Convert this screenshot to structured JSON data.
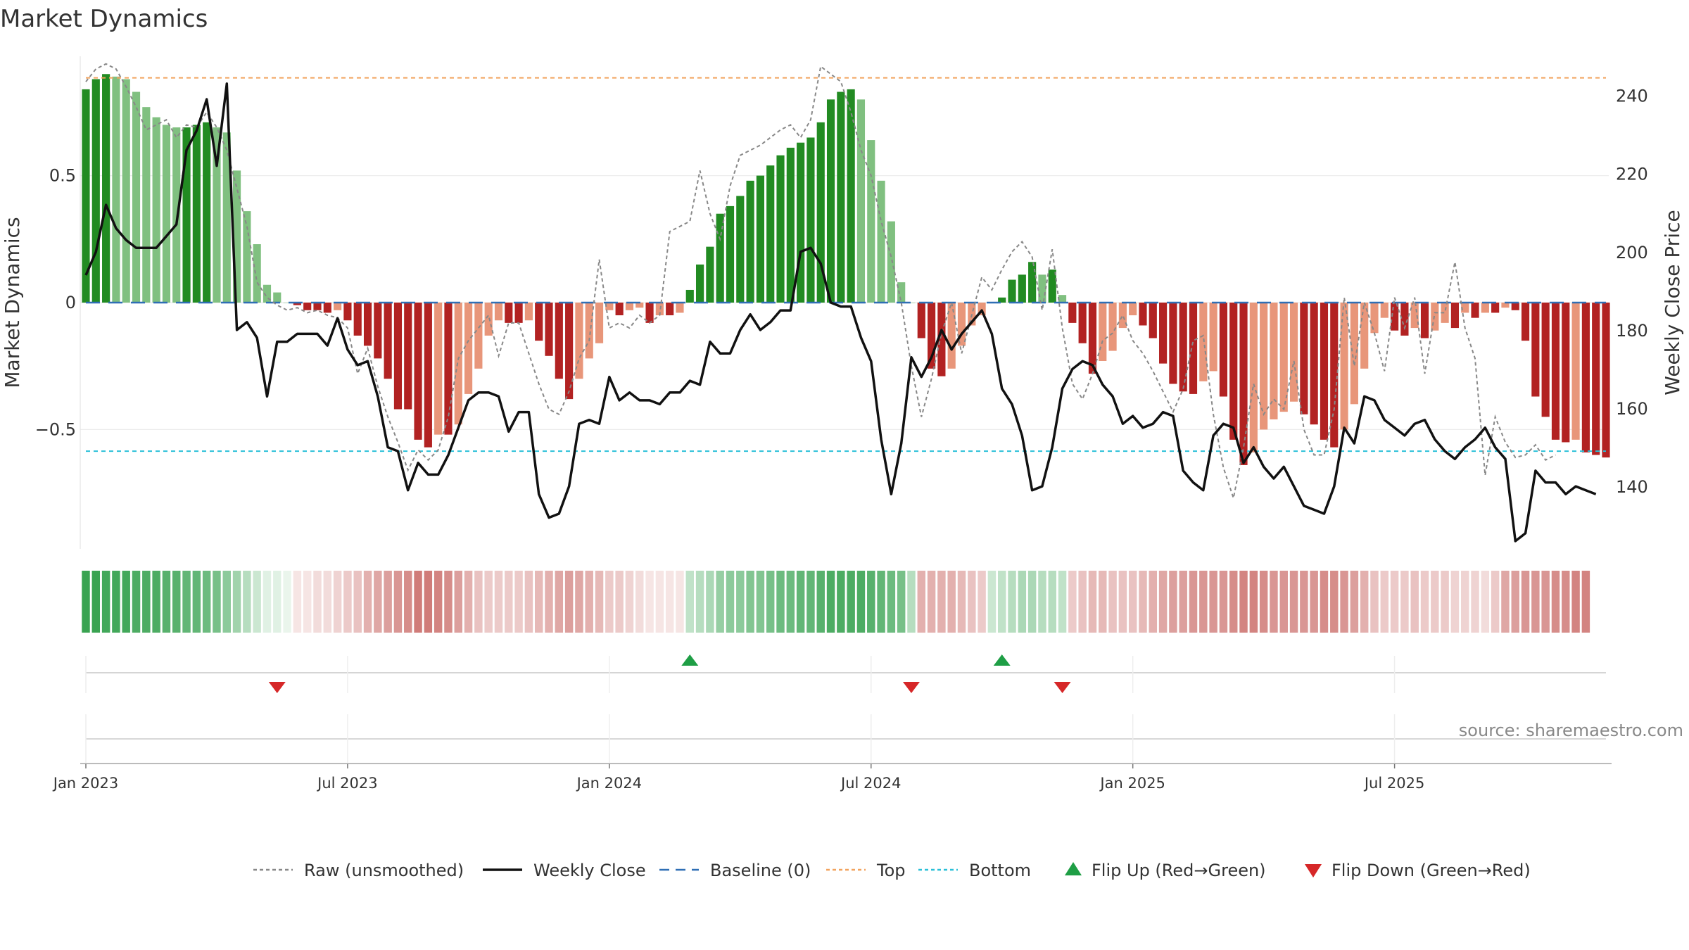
{
  "chart_data": {
    "type": "bar",
    "title": "Market Dynamics",
    "ylabel": "Market Dynamics",
    "y2label": "Weekly Close Price",
    "ylim": [
      -0.97,
      0.97
    ],
    "y2lim": [
      124,
      250
    ],
    "yticks": [
      {
        "value": 0.5,
        "label": "0.5"
      },
      {
        "value": 0,
        "label": "0"
      },
      {
        "value": -0.5,
        "label": "−0.5"
      }
    ],
    "y2ticks": [
      {
        "value": 240,
        "label": "240"
      },
      {
        "value": 220,
        "label": "220"
      },
      {
        "value": 200,
        "label": "200"
      },
      {
        "value": 180,
        "label": "180"
      },
      {
        "value": 160,
        "label": "160"
      },
      {
        "value": 140,
        "label": "140"
      }
    ],
    "xticks": [
      {
        "week": 1,
        "label": "Jan 2023"
      },
      {
        "week": 27,
        "label": "Jul 2023"
      },
      {
        "week": 53,
        "label": "Jan 2024"
      },
      {
        "week": 79,
        "label": "Jul 2024"
      },
      {
        "week": 105,
        "label": "Jan 2025"
      },
      {
        "week": 131,
        "label": "Jul 2025"
      }
    ],
    "reference_lines": {
      "top": 0.885,
      "bottom": -0.585,
      "baseline": 0
    },
    "market_dynamics": [
      0.84,
      0.88,
      0.9,
      0.89,
      0.88,
      0.83,
      0.77,
      0.73,
      0.7,
      0.69,
      0.69,
      0.7,
      0.71,
      0.69,
      0.67,
      0.52,
      0.36,
      0.23,
      0.07,
      0.04,
      0,
      -0.01,
      -0.03,
      -0.03,
      -0.04,
      -0.03,
      -0.07,
      -0.13,
      -0.17,
      -0.22,
      -0.3,
      -0.42,
      -0.42,
      -0.54,
      -0.57,
      -0.52,
      -0.52,
      -0.48,
      -0.36,
      -0.26,
      -0.13,
      -0.07,
      -0.08,
      -0.08,
      -0.07,
      -0.15,
      -0.21,
      -0.3,
      -0.38,
      -0.3,
      -0.22,
      -0.16,
      -0.03,
      -0.05,
      -0.03,
      -0.02,
      -0.08,
      -0.05,
      -0.05,
      -0.04,
      0.05,
      0.15,
      0.22,
      0.35,
      0.38,
      0.42,
      0.48,
      0.5,
      0.54,
      0.58,
      0.61,
      0.63,
      0.65,
      0.71,
      0.8,
      0.83,
      0.84,
      0.8,
      0.64,
      0.48,
      0.32,
      0.08,
      0,
      -0.14,
      -0.26,
      -0.29,
      -0.26,
      -0.17,
      -0.09,
      -0.05,
      0,
      0.02,
      0.09,
      0.11,
      0.16,
      0.11,
      0.13,
      0.03,
      -0.08,
      -0.16,
      -0.28,
      -0.23,
      -0.19,
      -0.1,
      -0.05,
      -0.09,
      -0.14,
      -0.24,
      -0.32,
      -0.35,
      -0.36,
      -0.31,
      -0.27,
      -0.37,
      -0.54,
      -0.64,
      -0.59,
      -0.5,
      -0.46,
      -0.43,
      -0.39,
      -0.44,
      -0.48,
      -0.54,
      -0.57,
      -0.5,
      -0.4,
      -0.26,
      -0.12,
      -0.06,
      -0.11,
      -0.13,
      -0.1,
      -0.14,
      -0.11,
      -0.08,
      -0.1,
      -0.04,
      -0.06,
      -0.04,
      -0.04,
      -0.02,
      -0.03,
      -0.15,
      -0.37,
      -0.45,
      -0.54,
      -0.55,
      -0.54,
      -0.59,
      -0.6,
      -0.61
    ],
    "raw_unsmoothed": [
      0.87,
      0.92,
      0.94,
      0.92,
      0.85,
      0.77,
      0.68,
      0.7,
      0.72,
      0.65,
      0.7,
      0.69,
      0.75,
      0.69,
      0.6,
      0.45,
      0.3,
      0.08,
      0.02,
      -0.01,
      -0.03,
      -0.02,
      -0.04,
      -0.03,
      -0.05,
      -0.06,
      -0.1,
      -0.28,
      -0.18,
      -0.33,
      -0.45,
      -0.55,
      -0.66,
      -0.58,
      -0.62,
      -0.58,
      -0.45,
      -0.22,
      -0.15,
      -0.1,
      -0.05,
      -0.21,
      -0.08,
      -0.08,
      -0.2,
      -0.32,
      -0.42,
      -0.44,
      -0.35,
      -0.22,
      -0.15,
      0.17,
      -0.1,
      -0.08,
      -0.1,
      -0.05,
      -0.08,
      -0.05,
      0.28,
      0.3,
      0.32,
      0.52,
      0.35,
      0.25,
      0.46,
      0.58,
      0.6,
      0.62,
      0.65,
      0.68,
      0.7,
      0.65,
      0.72,
      0.93,
      0.9,
      0.87,
      0.75,
      0.6,
      0.5,
      0.32,
      0.18,
      0,
      -0.25,
      -0.45,
      -0.3,
      -0.12,
      0,
      -0.2,
      -0.05,
      0.1,
      0.05,
      0.13,
      0.2,
      0.24,
      0.18,
      -0.03,
      0.21,
      -0.1,
      -0.32,
      -0.38,
      -0.28,
      -0.15,
      -0.12,
      -0.05,
      -0.15,
      -0.2,
      -0.27,
      -0.35,
      -0.43,
      -0.34,
      -0.15,
      -0.13,
      -0.44,
      -0.65,
      -0.77,
      -0.57,
      -0.32,
      -0.44,
      -0.38,
      -0.42,
      -0.23,
      -0.5,
      -0.6,
      -0.6,
      -0.42,
      0.02,
      -0.25,
      0,
      -0.12,
      -0.27,
      0.02,
      -0.1,
      0.02,
      -0.28,
      -0.04,
      -0.04,
      0.16,
      -0.1,
      -0.22,
      -0.68,
      -0.45,
      -0.55,
      -0.61,
      -0.6,
      -0.56,
      -0.62,
      -0.6
    ],
    "weekly_close": [
      194,
      200,
      212,
      206,
      203,
      201,
      201,
      201,
      204,
      207,
      226,
      231,
      239,
      222,
      243,
      180,
      182,
      178,
      163,
      177,
      177,
      179,
      179,
      179,
      176,
      183,
      175,
      171,
      172,
      163,
      150,
      149,
      139,
      146,
      143,
      143,
      148,
      155,
      162,
      164,
      164,
      163,
      154,
      159,
      159,
      138,
      132,
      133,
      140,
      156,
      157,
      156,
      168,
      162,
      164,
      162,
      162,
      161,
      164,
      164,
      167,
      166,
      177,
      174,
      174,
      180,
      184,
      180,
      182,
      185,
      185,
      200,
      201,
      197,
      187,
      186,
      186,
      178,
      172,
      152,
      138,
      151,
      173,
      168,
      173,
      180,
      175,
      179,
      182,
      185,
      179,
      165,
      161,
      153,
      139,
      140,
      150,
      165,
      170,
      172,
      171,
      166,
      163,
      156,
      158,
      155,
      156,
      159,
      158,
      144,
      141,
      139,
      153,
      156,
      155,
      146,
      150,
      145,
      142,
      145,
      140,
      135,
      134,
      133,
      140,
      155,
      151,
      163,
      162,
      157,
      155,
      153,
      156,
      157,
      152,
      149,
      147,
      150,
      152,
      155,
      150,
      147,
      126,
      128,
      144,
      141,
      141,
      138,
      140,
      139,
      138
    ],
    "signal_strength": [
      0.95,
      0.95,
      0.9,
      0.9,
      0.9,
      0.85,
      0.85,
      0.85,
      0.8,
      0.8,
      0.75,
      0.75,
      0.7,
      0.65,
      0.55,
      0.45,
      0.35,
      0.25,
      0.15,
      0.15,
      0.1,
      0.15,
      0.15,
      0.2,
      0.2,
      0.25,
      0.3,
      0.35,
      0.45,
      0.5,
      0.55,
      0.6,
      0.65,
      0.75,
      0.75,
      0.7,
      0.65,
      0.55,
      0.45,
      0.35,
      0.3,
      0.3,
      0.3,
      0.3,
      0.35,
      0.4,
      0.45,
      0.5,
      0.55,
      0.5,
      0.45,
      0.4,
      0.3,
      0.3,
      0.25,
      0.2,
      0.15,
      0.15,
      0.15,
      0.15,
      0.3,
      0.35,
      0.4,
      0.5,
      0.55,
      0.55,
      0.6,
      0.6,
      0.65,
      0.7,
      0.7,
      0.75,
      0.75,
      0.8,
      0.85,
      0.85,
      0.85,
      0.85,
      0.8,
      0.75,
      0.7,
      0.65,
      0.35,
      0.45,
      0.45,
      0.45,
      0.45,
      0.4,
      0.35,
      0.3,
      0.25,
      0.3,
      0.35,
      0.4,
      0.4,
      0.35,
      0.35,
      0.3,
      0.3,
      0.35,
      0.4,
      0.4,
      0.35,
      0.35,
      0.35,
      0.4,
      0.45,
      0.5,
      0.55,
      0.55,
      0.6,
      0.6,
      0.6,
      0.6,
      0.65,
      0.7,
      0.7,
      0.65,
      0.6,
      0.6,
      0.6,
      0.6,
      0.6,
      0.65,
      0.65,
      0.6,
      0.55,
      0.45,
      0.35,
      0.3,
      0.3,
      0.3,
      0.35,
      0.3,
      0.3,
      0.3,
      0.25,
      0.25,
      0.25,
      0.2,
      0.3,
      0.5,
      0.55,
      0.6,
      0.6,
      0.6,
      0.65,
      0.65,
      0.7,
      0.7
    ],
    "flip_up_weeks": [
      61,
      92
    ],
    "flip_down_weeks": [
      20,
      83,
      98
    ],
    "legend": [
      {
        "label": "Raw (unsmoothed)",
        "kind": "dash-line",
        "color": "#888888"
      },
      {
        "label": "Weekly Close",
        "kind": "line",
        "color": "#111111"
      },
      {
        "label": "Baseline (0)",
        "kind": "long-dash-line",
        "color": "#2f6fb5"
      },
      {
        "label": "Top",
        "kind": "dot-line",
        "color": "#f2a35e"
      },
      {
        "label": "Bottom",
        "kind": "dot-line",
        "color": "#2bc0d8"
      },
      {
        "label": "Flip Up (Red→Green)",
        "kind": "up-triangle",
        "color": "#1e9e45"
      },
      {
        "label": "Flip Down (Green→Red)",
        "kind": "down-triangle",
        "color": "#d62728"
      }
    ],
    "legend_position": "bottom",
    "source": "source: sharemaestro.com",
    "colors": {
      "strong_green": "#228b22",
      "light_green": "#80c080",
      "strong_red": "#b22222",
      "light_red": "#e8967a",
      "strip_green": "#2e9e48",
      "strip_red": "#c0504c"
    }
  }
}
